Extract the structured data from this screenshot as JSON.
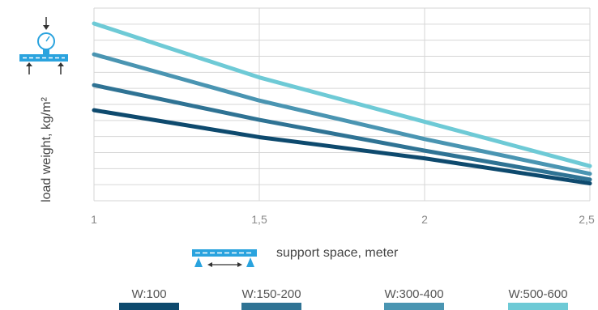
{
  "chart_data": {
    "type": "line",
    "x": [
      1,
      1.5,
      2,
      2.5
    ],
    "xtick_labels": [
      "1",
      "1,5",
      "2",
      "2,5"
    ],
    "xlabel": "support space, meter",
    "ylabel": "load weight, kg/m²",
    "xlim": [
      1,
      2.5
    ],
    "ylim": [
      0,
      100
    ],
    "grid": true,
    "legend_position": "bottom",
    "series": [
      {
        "name": "W:100",
        "color": "#0e4a6e",
        "values": [
          47,
          33,
          22,
          9
        ]
      },
      {
        "name": "W:150-200",
        "color": "#2f7394",
        "values": [
          60,
          42,
          26,
          11
        ]
      },
      {
        "name": "W:300-400",
        "color": "#4a95b2",
        "values": [
          76,
          52,
          32,
          14
        ]
      },
      {
        "name": "W:500-600",
        "color": "#6ecad6",
        "values": [
          92,
          64,
          41,
          18
        ]
      }
    ]
  }
}
